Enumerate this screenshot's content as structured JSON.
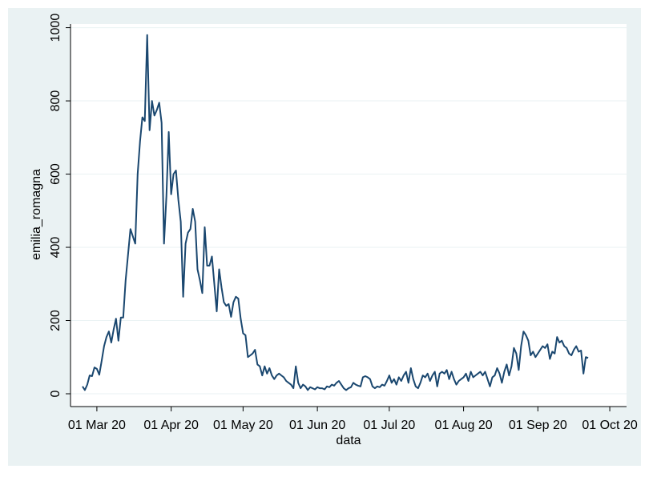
{
  "chart_data": {
    "type": "line",
    "xlabel": "data",
    "ylabel": "emilia_romagna",
    "x_start": "2020-02-24",
    "xlim": [
      "2020-02-19",
      "2020-10-08"
    ],
    "xticks": [
      {
        "value": "2020-03-01",
        "label": "01 Mar 20"
      },
      {
        "value": "2020-04-01",
        "label": "01 Apr 20"
      },
      {
        "value": "2020-05-01",
        "label": "01 May 20"
      },
      {
        "value": "2020-06-01",
        "label": "01 Jun 20"
      },
      {
        "value": "2020-07-01",
        "label": "01 Jul 20"
      },
      {
        "value": "2020-08-01",
        "label": "01 Aug 20"
      },
      {
        "value": "2020-09-01",
        "label": "01 Sep 20"
      },
      {
        "value": "2020-10-01",
        "label": "01 Oct 20"
      }
    ],
    "ylim": [
      -35,
      1010
    ],
    "yticks": [
      0,
      200,
      400,
      600,
      800,
      1000
    ],
    "grid": true,
    "series": [
      {
        "color": "#1a476f",
        "values": [
          20,
          10,
          25,
          50,
          48,
          72,
          68,
          52,
          90,
          130,
          155,
          170,
          140,
          175,
          205,
          145,
          208,
          208,
          310,
          380,
          450,
          430,
          410,
          600,
          690,
          755,
          745,
          980,
          720,
          800,
          760,
          775,
          795,
          740,
          410,
          540,
          715,
          545,
          600,
          610,
          530,
          470,
          265,
          410,
          440,
          450,
          505,
          470,
          340,
          310,
          275,
          455,
          350,
          350,
          375,
          300,
          225,
          340,
          290,
          250,
          240,
          245,
          210,
          250,
          265,
          260,
          205,
          165,
          160,
          100,
          105,
          110,
          120,
          80,
          75,
          50,
          75,
          55,
          70,
          50,
          40,
          50,
          55,
          50,
          45,
          35,
          30,
          25,
          15,
          75,
          30,
          15,
          25,
          20,
          10,
          18,
          15,
          12,
          18,
          15,
          15,
          12,
          20,
          18,
          25,
          22,
          30,
          35,
          25,
          15,
          10,
          15,
          18,
          30,
          25,
          22,
          20,
          45,
          48,
          45,
          40,
          20,
          15,
          20,
          18,
          25,
          22,
          35,
          50,
          30,
          40,
          25,
          45,
          35,
          50,
          60,
          30,
          70,
          40,
          20,
          15,
          30,
          50,
          45,
          55,
          35,
          50,
          60,
          20,
          55,
          60,
          55,
          65,
          40,
          60,
          40,
          25,
          35,
          40,
          45,
          55,
          35,
          60,
          45,
          50,
          55,
          60,
          50,
          60,
          40,
          20,
          45,
          50,
          70,
          55,
          30,
          60,
          80,
          50,
          75,
          125,
          110,
          65,
          130,
          170,
          160,
          145,
          105,
          115,
          100,
          110,
          120,
          130,
          125,
          135,
          95,
          115,
          110,
          155,
          140,
          145,
          130,
          125,
          110,
          105,
          120,
          130,
          115,
          118,
          55,
          100,
          98
        ]
      }
    ]
  }
}
